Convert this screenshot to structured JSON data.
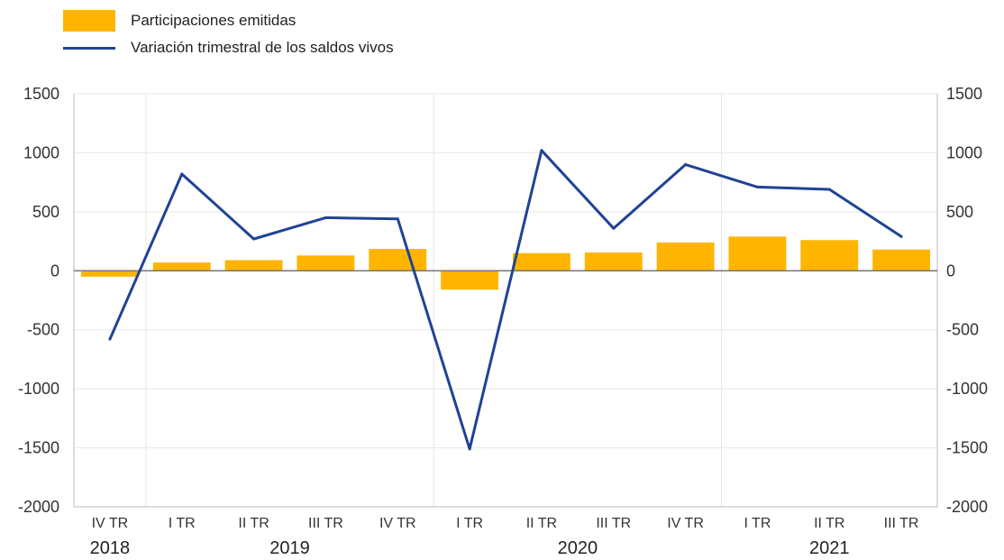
{
  "colors": {
    "bar": "#FFB500",
    "line": "#1F4396",
    "grid": "#e8e8e8",
    "axis": "#bbbbbb"
  },
  "legend": {
    "bar_label": "Participaciones emitidas",
    "line_label": "Variación trimestral de los saldos vivos"
  },
  "chart_data": {
    "type": "bar",
    "categories": [
      "IV TR",
      "I TR",
      "II TR",
      "III TR",
      "IV TR",
      "I TR",
      "II TR",
      "III TR",
      "IV TR",
      "I TR",
      "II TR",
      "III TR"
    ],
    "years": [
      {
        "label": "2018",
        "start": 0,
        "end": 0
      },
      {
        "label": "2019",
        "start": 1,
        "end": 4
      },
      {
        "label": "2020",
        "start": 5,
        "end": 8
      },
      {
        "label": "2021",
        "start": 9,
        "end": 11
      }
    ],
    "series": [
      {
        "name": "Participaciones emitidas",
        "type": "bar",
        "values": [
          -50,
          70,
          90,
          130,
          185,
          -160,
          150,
          155,
          240,
          290,
          260,
          180
        ]
      },
      {
        "name": "Variación trimestral de los saldos vivos",
        "type": "line",
        "values": [
          -580,
          820,
          270,
          450,
          440,
          -1510,
          1020,
          360,
          900,
          710,
          690,
          290
        ]
      }
    ],
    "ylim": [
      -2000,
      1500
    ],
    "yticks": [
      1500,
      1000,
      500,
      0,
      -500,
      -1000,
      -1500,
      -2000
    ],
    "y_axis_both_sides": true,
    "grid": true,
    "legend_position": "top-left"
  }
}
